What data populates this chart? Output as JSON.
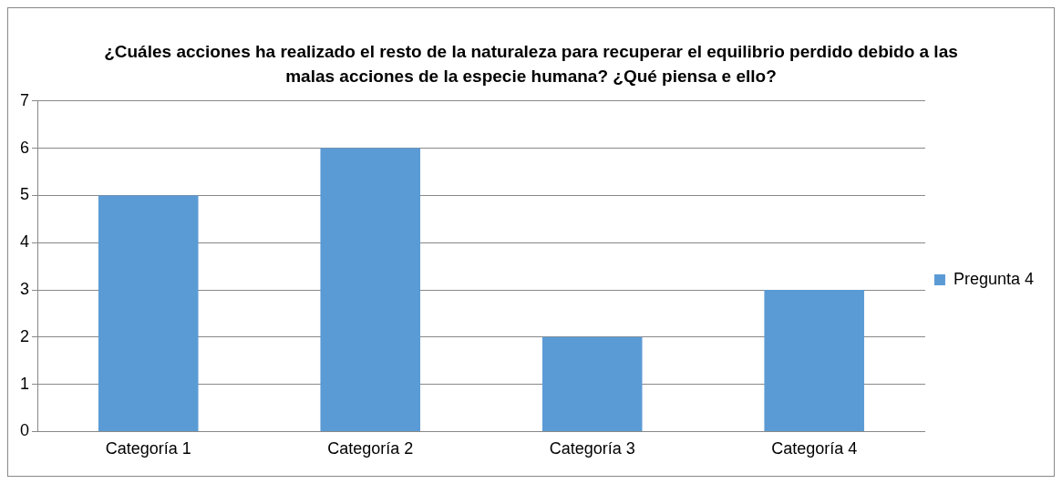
{
  "chart_data": {
    "type": "bar",
    "title": "¿Cuáles acciones ha realizado el resto de la naturaleza para recuperar el equilibrio perdido debido a las malas acciones de la especie humana? ¿Qué piensa e ello?",
    "categories": [
      "Categoría 1",
      "Categoría 2",
      "Categoría 3",
      "Categoría 4"
    ],
    "series": [
      {
        "name": "Pregunta 4",
        "color": "#5b9bd5",
        "values": [
          5,
          6,
          2,
          3
        ]
      }
    ],
    "ylim": [
      0,
      7
    ],
    "yticks": [
      0,
      1,
      2,
      3,
      4,
      5,
      6,
      7
    ],
    "grid": "y",
    "legend": "right"
  }
}
